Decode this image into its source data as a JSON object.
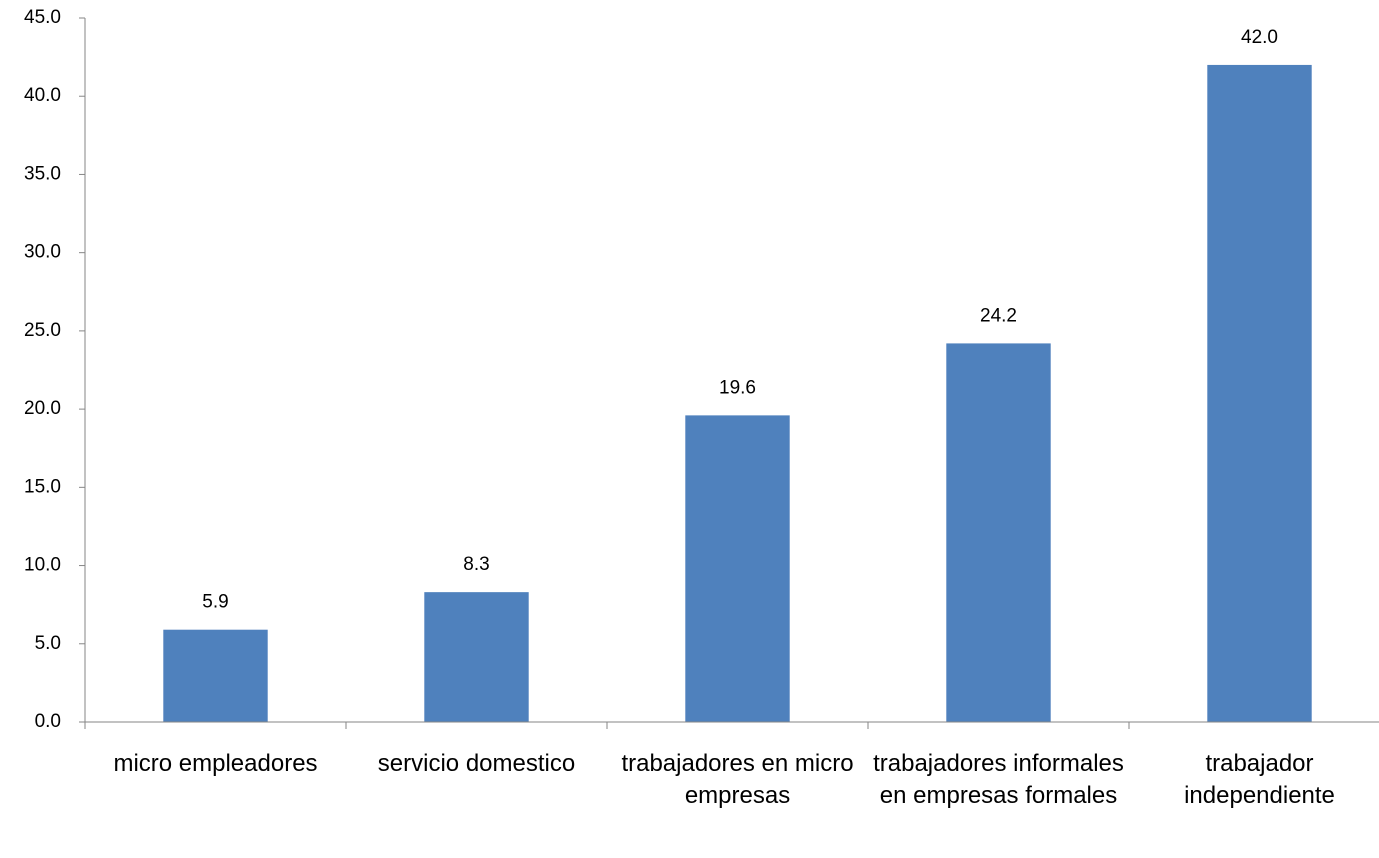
{
  "chart_data": {
    "type": "bar",
    "categories": [
      "micro empleadores",
      "servicio domestico",
      "trabajadores en micro empresas",
      "trabajadores informales en empresas formales",
      "trabajador independiente"
    ],
    "values": [
      5.9,
      8.3,
      19.6,
      24.2,
      42.0
    ],
    "value_labels": [
      "5.9",
      "8.3",
      "19.6",
      "24.2",
      "42.0"
    ],
    "color": "#4f81bd",
    "ylim": [
      0,
      45
    ],
    "yticks": [
      {
        "value": 0,
        "label": "0.0"
      },
      {
        "value": 5,
        "label": "5.0"
      },
      {
        "value": 10,
        "label": "10.0"
      },
      {
        "value": 15,
        "label": "15.0"
      },
      {
        "value": 20,
        "label": "20.0"
      },
      {
        "value": 25,
        "label": "25.0"
      },
      {
        "value": 30,
        "label": "30.0"
      },
      {
        "value": 35,
        "label": "35.0"
      },
      {
        "value": 40,
        "label": "40.0"
      },
      {
        "value": 45,
        "label": "45.0"
      }
    ],
    "grid": false
  }
}
